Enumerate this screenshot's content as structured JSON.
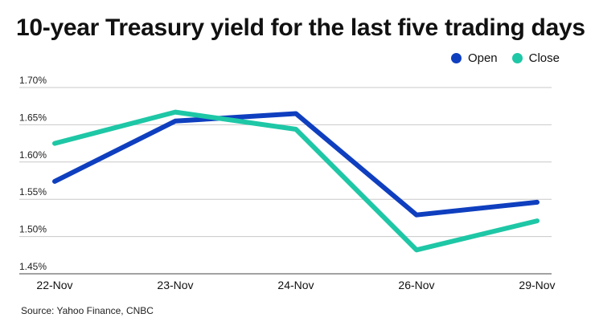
{
  "title": "10-year Treasury yield for the last five trading days",
  "source": "Source: Yahoo Finance, CNBC",
  "legend": [
    {
      "label": "Open",
      "color": "#0f3fbf"
    },
    {
      "label": "Close",
      "color": "#1ec7a6"
    }
  ],
  "chart_data": {
    "type": "line",
    "categories": [
      "22-Nov",
      "23-Nov",
      "24-Nov",
      "26-Nov",
      "29-Nov"
    ],
    "series": [
      {
        "name": "Open",
        "color": "#0f3fbf",
        "values": [
          1.574,
          1.655,
          1.665,
          1.529,
          1.546
        ]
      },
      {
        "name": "Close",
        "color": "#1ec7a6",
        "values": [
          1.625,
          1.667,
          1.644,
          1.482,
          1.521
        ]
      }
    ],
    "yticks": [
      "1.45%",
      "1.50%",
      "1.55%",
      "1.60%",
      "1.65%",
      "1.70%"
    ],
    "ylim": [
      1.45,
      1.7
    ],
    "grid": true,
    "legend_position": "top-right"
  }
}
